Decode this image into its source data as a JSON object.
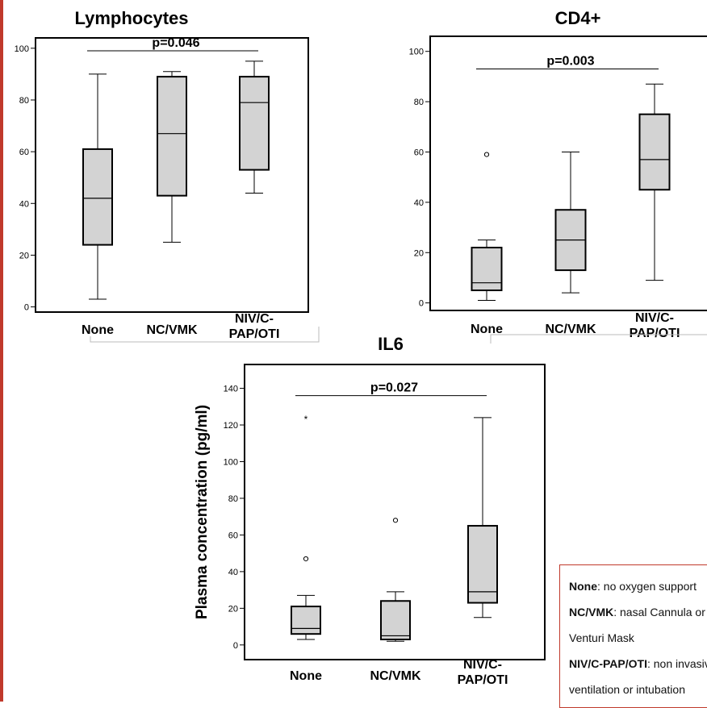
{
  "chart_data": [
    {
      "type": "box",
      "title": "Lymphocytes",
      "ylabel": "",
      "categories": [
        "None",
        "NC/VMK",
        "NIV/C-PAP/OTI"
      ],
      "category_lines": [
        [
          "None"
        ],
        [
          "NC/VMK"
        ],
        [
          "NIV/C-",
          "PAP/OTI"
        ]
      ],
      "ylim": [
        -2,
        104
      ],
      "yticks": [
        0,
        20,
        40,
        60,
        80,
        100
      ],
      "boxes": [
        {
          "min": 3,
          "q1": 24,
          "median": 42,
          "q3": 61,
          "max": 90
        },
        {
          "min": 25,
          "q1": 43,
          "median": 67,
          "q3": 89,
          "max": 91
        },
        {
          "min": 44,
          "q1": 53,
          "median": 79,
          "q3": 89,
          "max": 95
        }
      ],
      "outliers": [],
      "annotation": {
        "text": "p=0.046",
        "from": 0,
        "to": 2,
        "y": 99
      }
    },
    {
      "type": "box",
      "title": "CD4+",
      "ylabel": "",
      "categories": [
        "None",
        "NC/VMK",
        "NIV/C-PAP/OTI"
      ],
      "category_lines": [
        [
          "None"
        ],
        [
          "NC/VMK"
        ],
        [
          "NIV/C-",
          "PAP/OTI"
        ]
      ],
      "ylim": [
        -3,
        106
      ],
      "yticks": [
        0,
        20,
        40,
        60,
        80,
        100
      ],
      "boxes": [
        {
          "min": 1,
          "q1": 5,
          "median": 8,
          "q3": 22,
          "max": 25
        },
        {
          "min": 4,
          "q1": 13,
          "median": 25,
          "q3": 37,
          "max": 60
        },
        {
          "min": 9,
          "q1": 45,
          "median": 57,
          "q3": 75,
          "max": 87
        }
      ],
      "outliers": [
        {
          "group": 0,
          "value": 59,
          "marker": "circle"
        }
      ],
      "annotation": {
        "text": "p=0.003",
        "from": 0,
        "to": 2,
        "y": 93
      }
    },
    {
      "type": "box",
      "title": "IL6",
      "ylabel": "Plasma concentration (pg/ml)",
      "categories": [
        "None",
        "NC/VMK",
        "NIV/C-PAP/OTI"
      ],
      "category_lines": [
        [
          "None"
        ],
        [
          "NC/VMK"
        ],
        [
          "NIV/C-",
          "PAP/OTI"
        ]
      ],
      "ylim": [
        -8,
        153
      ],
      "yticks": [
        0,
        20,
        40,
        60,
        80,
        100,
        120,
        140
      ],
      "boxes": [
        {
          "min": 3,
          "q1": 6,
          "median": 9,
          "q3": 21,
          "max": 27
        },
        {
          "min": 2,
          "q1": 3,
          "median": 5,
          "q3": 24,
          "max": 29
        },
        {
          "min": 15,
          "q1": 23,
          "median": 29,
          "q3": 65,
          "max": 124
        }
      ],
      "outliers": [
        {
          "group": 0,
          "value": 124,
          "marker": "star"
        },
        {
          "group": 0,
          "value": 47,
          "marker": "circle"
        },
        {
          "group": 1,
          "value": 68,
          "marker": "circle"
        }
      ],
      "annotation": {
        "text": "p=0.027",
        "from": 0,
        "to": 2,
        "y": 136
      }
    }
  ],
  "legend_note": [
    {
      "term": "None",
      "text": ": no oxygen support"
    },
    {
      "term": "NC/VMK",
      "text": ": nasal Cannula or"
    },
    {
      "term": "",
      "text": "Venturi Mask"
    },
    {
      "term": "NIV/C-PAP/OTI",
      "text": ": non invasive"
    },
    {
      "term": "",
      "text": "ventilation or intubation"
    }
  ]
}
